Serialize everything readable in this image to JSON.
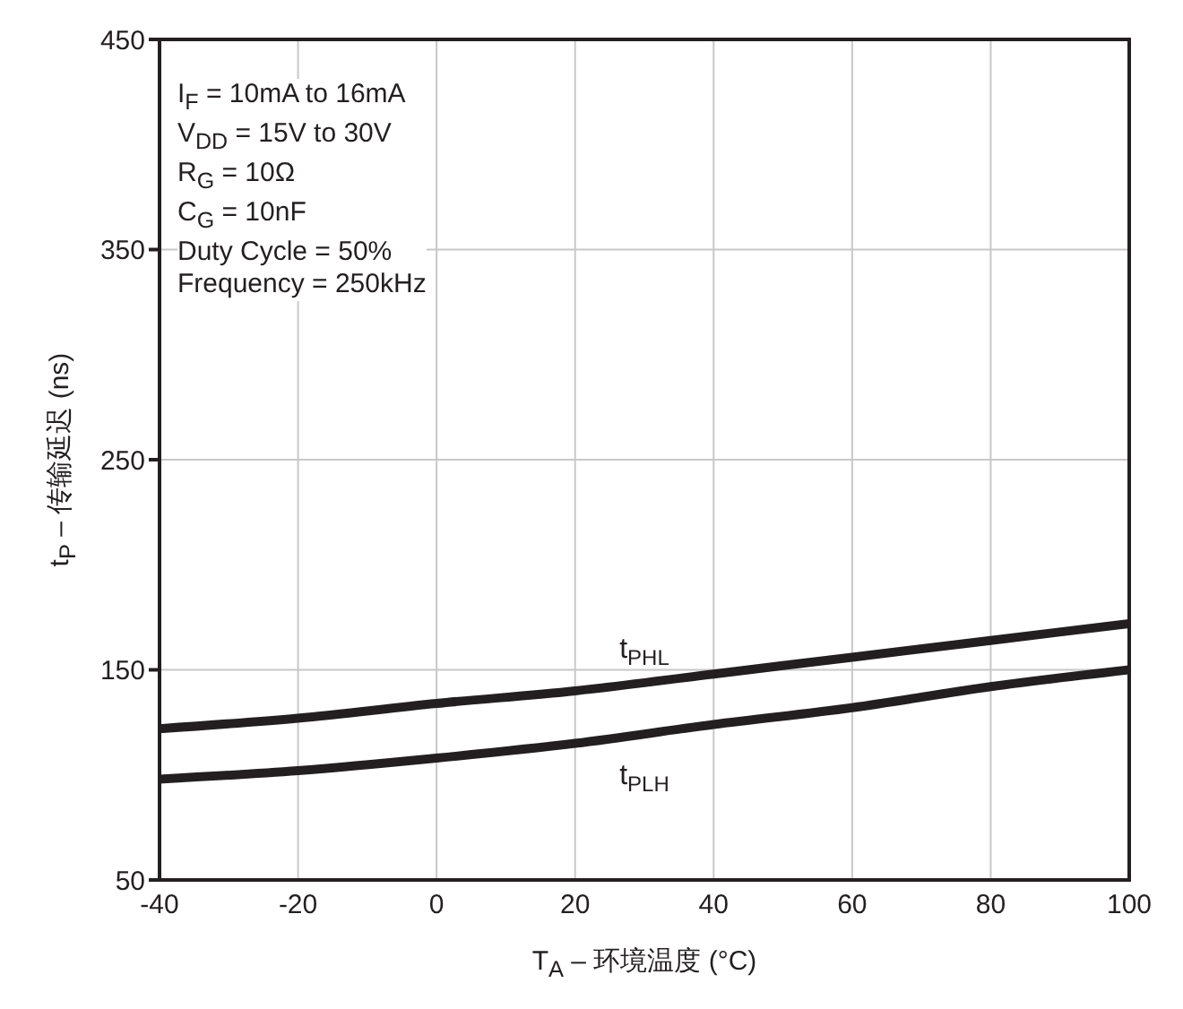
{
  "chart_data": {
    "type": "line",
    "xlabel": "T$_{A}$ – 环境温度 (°C)",
    "ylabel": "t$_{P}$ – 传输延迟 (ns)",
    "x": [
      -40,
      -20,
      0,
      20,
      40,
      60,
      80,
      100
    ],
    "series": [
      {
        "name": "t$_{PHL}$",
        "color": "#231f20",
        "values": [
          122,
          127,
          134,
          140,
          148,
          156,
          164,
          172
        ]
      },
      {
        "name": "t$_{PLH}$",
        "color": "#231f20",
        "values": [
          98,
          102,
          108,
          115,
          124,
          132,
          142,
          150
        ]
      }
    ],
    "xlim": [
      -40,
      100
    ],
    "xticks": [
      -40,
      -20,
      0,
      20,
      40,
      60,
      80,
      100
    ],
    "ylim": [
      50,
      450
    ],
    "yticks": [
      50,
      150,
      250,
      350,
      450
    ],
    "grid": true,
    "legend": false,
    "marker": "none",
    "line_style": "solid",
    "annotations": [
      "I$_{F}$ = 10mA to 16mA",
      "V$_{DD}$ = 15V to 30V",
      "R$_{G}$ = 10Ω",
      "C$_{G}$ = 10nF",
      "Duty Cycle = 50%",
      "Frequency = 250kHz"
    ]
  }
}
